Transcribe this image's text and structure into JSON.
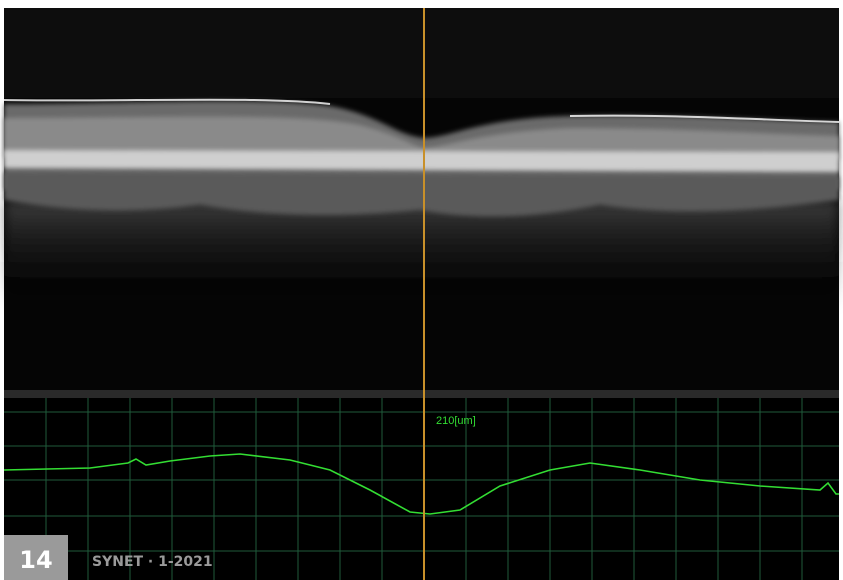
{
  "image_label": "210[um]",
  "footer": {
    "page_number": "14",
    "journal": "SYNET · 1-2021"
  }
}
